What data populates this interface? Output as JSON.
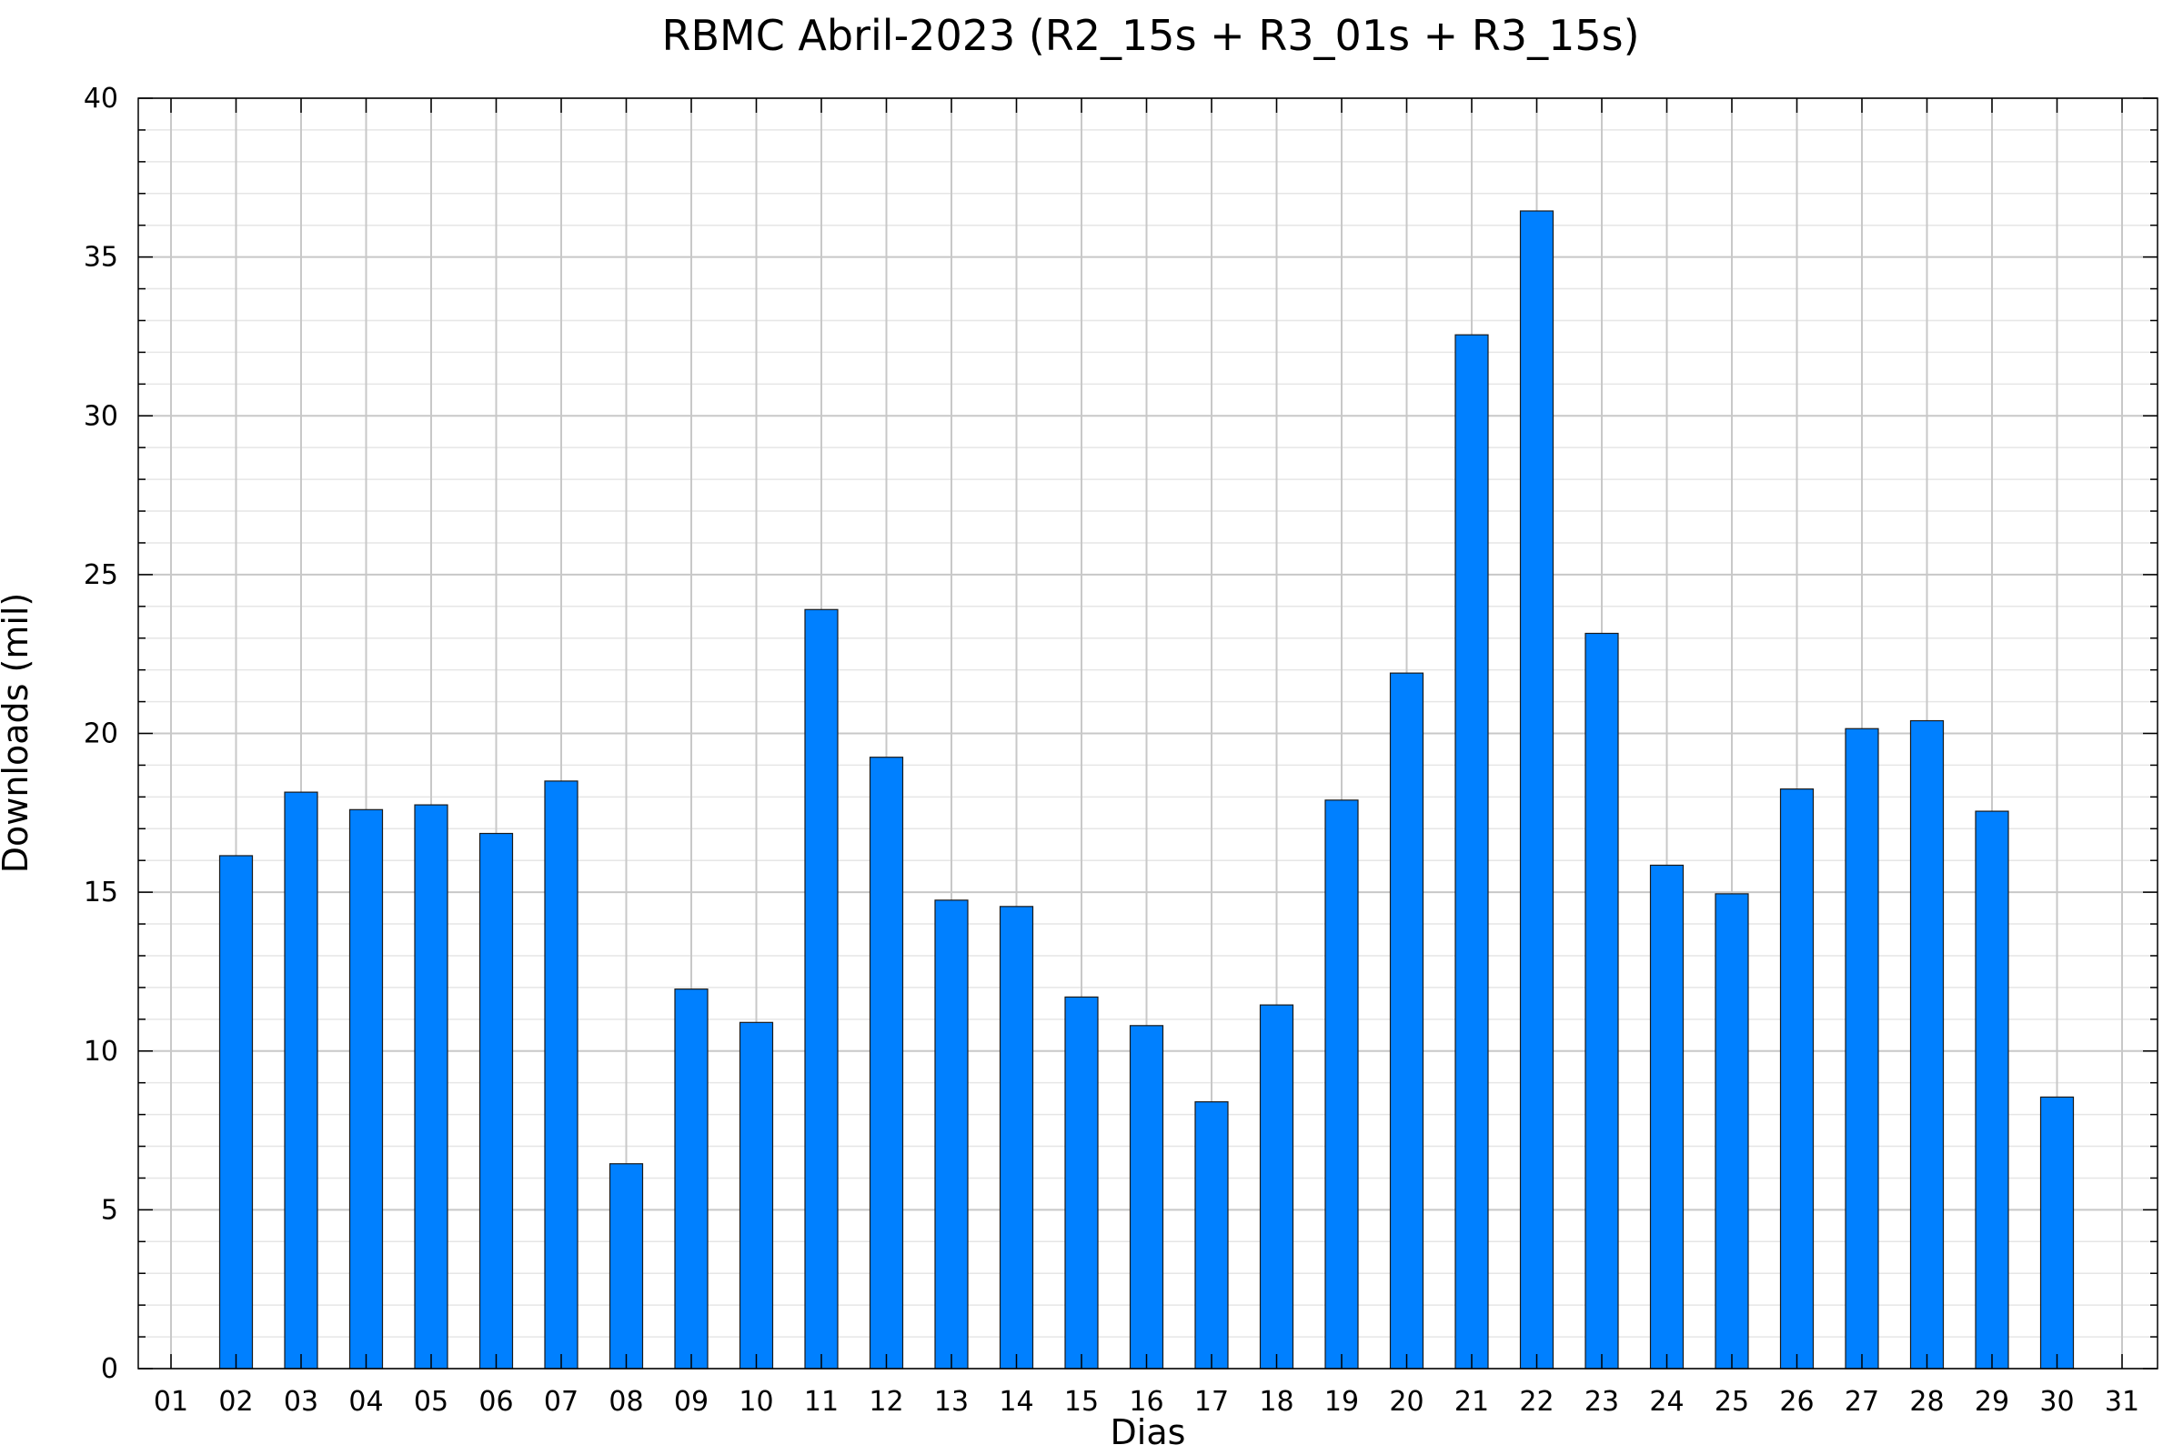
{
  "chart_data": {
    "type": "bar",
    "title": "RBMC Abril-2023 (R2_15s + R3_01s + R3_15s)",
    "xlabel": "Dias",
    "ylabel": "Downloads (mil)",
    "ylim": [
      0,
      40
    ],
    "y_ticks": [
      0,
      5,
      10,
      15,
      20,
      25,
      30,
      35,
      40
    ],
    "y_minor_step": 1,
    "grid": true,
    "bar_color": "#0080ff",
    "categories": [
      "01",
      "02",
      "03",
      "04",
      "05",
      "06",
      "07",
      "08",
      "09",
      "10",
      "11",
      "12",
      "13",
      "14",
      "15",
      "16",
      "17",
      "18",
      "19",
      "20",
      "21",
      "22",
      "23",
      "24",
      "25",
      "26",
      "27",
      "28",
      "29",
      "30",
      "31"
    ],
    "values": [
      0,
      16.15,
      18.15,
      17.6,
      17.75,
      16.85,
      18.5,
      6.45,
      11.95,
      10.9,
      23.9,
      19.25,
      14.75,
      14.55,
      11.7,
      10.8,
      8.4,
      11.45,
      17.9,
      21.9,
      32.55,
      36.45,
      23.15,
      15.85,
      14.95,
      18.25,
      20.15,
      20.4,
      17.55,
      8.55,
      0
    ]
  }
}
